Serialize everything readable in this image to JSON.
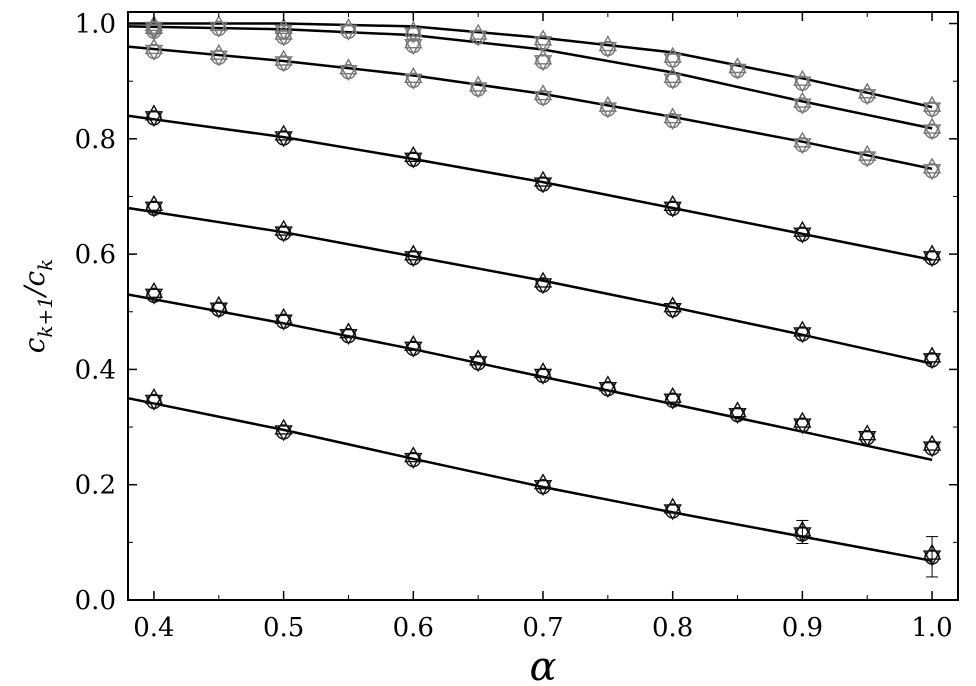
{
  "chart_data": {
    "type": "scatter",
    "title": "",
    "xlabel": "α",
    "ylabel_main": "c",
    "ylabel_sub1": "k+1",
    "ylabel_mid": "/c",
    "ylabel_sub2": "k",
    "xlim": [
      0.38,
      1.02
    ],
    "ylim": [
      0.0,
      1.02
    ],
    "xticks": [
      0.4,
      0.5,
      0.6,
      0.7,
      0.8,
      0.9,
      1.0
    ],
    "xtick_labels": [
      "0.4",
      "0.5",
      "0.6",
      "0.7",
      "0.8",
      "0.9",
      "1.0"
    ],
    "yticks": [
      0.0,
      0.2,
      0.4,
      0.6,
      0.8,
      1.0
    ],
    "ytick_labels": [
      "0.0",
      "0.2",
      "0.4",
      "0.6",
      "0.8",
      "1.0"
    ],
    "grid": false,
    "legend": "none",
    "colors": {
      "curve": "#000000",
      "black_markers": "#111111",
      "gray_markers": "#777777"
    },
    "curves": [
      {
        "x": [
          0.38,
          0.5,
          0.6,
          0.7,
          0.8,
          0.9,
          1.0
        ],
        "y": [
          1.0,
          1.0,
          0.995,
          0.975,
          0.95,
          0.905,
          0.855
        ]
      },
      {
        "x": [
          0.38,
          0.5,
          0.6,
          0.7,
          0.8,
          0.9,
          1.0
        ],
        "y": [
          0.995,
          0.99,
          0.98,
          0.955,
          0.915,
          0.865,
          0.818
        ]
      },
      {
        "x": [
          0.38,
          0.5,
          0.6,
          0.7,
          0.8,
          0.9,
          1.0
        ],
        "y": [
          0.96,
          0.935,
          0.91,
          0.878,
          0.838,
          0.795,
          0.748
        ]
      },
      {
        "x": [
          0.38,
          0.5,
          0.6,
          0.7,
          0.8,
          0.9,
          1.0
        ],
        "y": [
          0.84,
          0.803,
          0.765,
          0.725,
          0.68,
          0.635,
          0.59
        ]
      },
      {
        "x": [
          0.38,
          0.5,
          0.6,
          0.7,
          0.8,
          0.9,
          1.0
        ],
        "y": [
          0.68,
          0.638,
          0.596,
          0.554,
          0.508,
          0.46,
          0.41
        ]
      },
      {
        "x": [
          0.38,
          0.5,
          0.6,
          0.7,
          0.8,
          0.9,
          1.0
        ],
        "y": [
          0.53,
          0.48,
          0.435,
          0.387,
          0.34,
          0.292,
          0.243
        ]
      },
      {
        "x": [
          0.38,
          0.5,
          0.6,
          0.7,
          0.8,
          0.9,
          1.0
        ],
        "y": [
          0.35,
          0.295,
          0.245,
          0.196,
          0.152,
          0.11,
          0.068
        ]
      }
    ],
    "marker_groups": [
      {
        "color": "gray",
        "x": [
          0.4,
          0.45,
          0.5,
          0.55,
          0.6,
          0.65,
          0.7,
          0.75,
          0.8,
          0.85,
          0.9,
          0.95,
          1.0
        ],
        "y": [
          0.995,
          0.995,
          0.99,
          0.99,
          0.985,
          0.98,
          0.97,
          0.96,
          0.94,
          0.922,
          0.9,
          0.878,
          0.855
        ]
      },
      {
        "color": "gray",
        "x": [
          0.4,
          0.5,
          0.6,
          0.7,
          0.8,
          0.9,
          1.0
        ],
        "y": [
          0.99,
          0.98,
          0.965,
          0.937,
          0.905,
          0.862,
          0.817
        ]
      },
      {
        "color": "gray",
        "x": [
          0.4,
          0.45,
          0.5,
          0.55,
          0.6,
          0.65,
          0.7,
          0.75,
          0.8,
          0.9,
          0.95,
          1.0
        ],
        "y": [
          0.955,
          0.945,
          0.935,
          0.92,
          0.905,
          0.89,
          0.875,
          0.855,
          0.835,
          0.793,
          0.77,
          0.748
        ]
      },
      {
        "color": "black",
        "x": [
          0.4,
          0.5,
          0.6,
          0.7,
          0.8,
          0.9,
          1.0
        ],
        "y": [
          0.84,
          0.805,
          0.768,
          0.725,
          0.683,
          0.638,
          0.597
        ]
      },
      {
        "color": "black",
        "x": [
          0.4,
          0.5,
          0.6,
          0.7,
          0.8,
          0.9,
          1.0
        ],
        "y": [
          0.683,
          0.64,
          0.597,
          0.55,
          0.507,
          0.465,
          0.42
        ]
      },
      {
        "color": "black",
        "x": [
          0.4,
          0.45,
          0.5,
          0.55,
          0.6,
          0.65,
          0.7,
          0.75,
          0.8,
          0.85,
          0.9,
          0.95,
          1.0
        ],
        "y": [
          0.532,
          0.508,
          0.487,
          0.462,
          0.44,
          0.415,
          0.393,
          0.37,
          0.35,
          0.325,
          0.307,
          0.285,
          0.267
        ]
      },
      {
        "color": "black",
        "x": [
          0.4,
          0.5,
          0.6,
          0.7,
          0.8,
          0.9,
          1.0
        ],
        "y": [
          0.348,
          0.295,
          0.247,
          0.2,
          0.158,
          0.118,
          0.078
        ]
      }
    ],
    "error_bars": [
      {
        "x": 0.9,
        "y": 0.118,
        "err": 0.02
      },
      {
        "x": 1.0,
        "y": 0.075,
        "err": 0.035
      }
    ]
  }
}
